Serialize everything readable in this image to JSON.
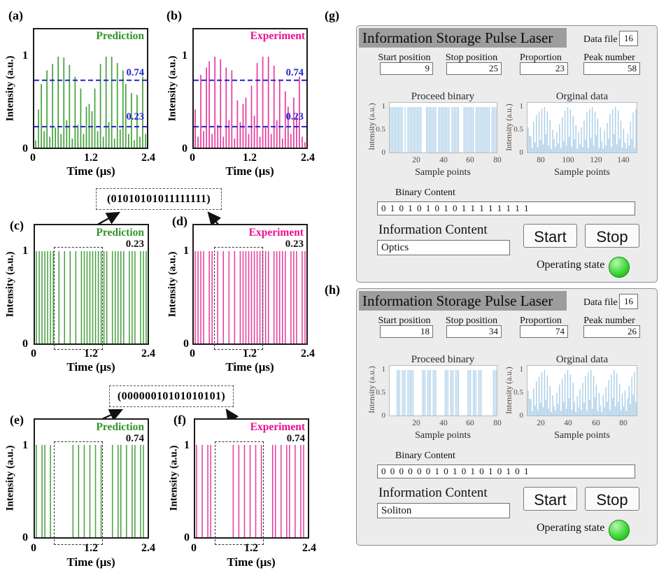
{
  "tags": {
    "a": "(a)",
    "b": "(b)",
    "c": "(c)",
    "d": "(d)",
    "e": "(e)",
    "f": "(f)",
    "g": "(g)",
    "h": "(h)"
  },
  "colors": {
    "prediction": "#44a03c",
    "experiment": "#e63a9e",
    "annotation_blue": "#2222cc",
    "gui_bar": "#a9cde8",
    "led_green": "#2ecc2e"
  },
  "annotations": {
    "cd": "(01010101011111111)",
    "ef": "(00000010101010101)"
  },
  "chart_data": [
    {
      "id": "a",
      "type": "stem",
      "legend": "Prediction",
      "xlabel": "Time (μs)",
      "ylabel": "Intensity (a.u.)",
      "xlim": [
        0,
        2.4
      ],
      "ylim": [
        0,
        1.15
      ],
      "xticks": [
        "0",
        "1.2",
        "2.4"
      ],
      "yticks": [
        "1",
        "0"
      ],
      "thresholds": [
        {
          "value": 0.74,
          "label": "0.74"
        },
        {
          "value": 0.23,
          "label": "0.23"
        }
      ],
      "values": [
        0.08,
        0.42,
        0.7,
        0.18,
        0.85,
        0.12,
        0.92,
        0.22,
        1.0,
        0.15,
        0.99,
        0.3,
        0.91,
        0.1,
        0.78,
        0.25,
        0.65,
        0.15,
        0.45,
        0.48,
        0.4,
        0.65,
        0.18,
        0.92,
        0.12,
        1.0,
        0.28,
        1.0,
        0.1,
        0.93,
        0.2,
        0.85,
        0.7,
        0.15,
        0.6,
        0.08,
        0.58,
        0.12,
        0.78,
        0.15
      ]
    },
    {
      "id": "b",
      "type": "stem",
      "legend": "Experiment",
      "xlabel": "Time (μs)",
      "ylabel": "Intensity (a.u.)",
      "xlim": [
        0,
        2.4
      ],
      "ylim": [
        0,
        1.15
      ],
      "xticks": [
        "0",
        "1.2",
        "2.4"
      ],
      "yticks": [
        "1",
        "0"
      ],
      "thresholds": [
        {
          "value": 0.74,
          "label": "0.74"
        },
        {
          "value": 0.23,
          "label": "0.23"
        }
      ],
      "values": [
        0.42,
        0.12,
        0.8,
        0.18,
        0.88,
        0.95,
        0.15,
        1.0,
        0.25,
        0.97,
        0.12,
        0.88,
        0.3,
        0.85,
        0.1,
        0.52,
        0.28,
        0.48,
        0.55,
        0.15,
        0.68,
        0.35,
        0.93,
        0.12,
        1.0,
        0.22,
        1.0,
        0.15,
        0.9,
        0.3,
        0.75,
        0.1,
        0.62,
        0.45,
        0.15,
        0.55,
        0.35,
        0.78,
        0.12,
        0.06
      ]
    },
    {
      "id": "c",
      "type": "stem",
      "legend": "Prediction",
      "threshold_label": "0.23",
      "xlabel": "Time (μs)",
      "ylabel": "Intensity (a.u.)",
      "xlim": [
        0,
        2.4
      ],
      "ylim": [
        0,
        1.15
      ],
      "xticks": [
        "0",
        "1.2",
        "2.4"
      ],
      "yticks": [
        "1",
        "0"
      ],
      "values": [
        1,
        1,
        1,
        1,
        1,
        1,
        1,
        0,
        1,
        0,
        1,
        0,
        1,
        0,
        1,
        0,
        1,
        1,
        1,
        1,
        1,
        1,
        1,
        1,
        1,
        1,
        0,
        1,
        1,
        1,
        1,
        1,
        0,
        1,
        1,
        1,
        0,
        1,
        1,
        1
      ]
    },
    {
      "id": "d",
      "type": "stem",
      "legend": "Experiment",
      "threshold_label": "0.23",
      "xlabel": "Time (μs)",
      "ylabel": "Intensity (a.u.)",
      "xlim": [
        0,
        2.4
      ],
      "ylim": [
        0,
        1.15
      ],
      "xticks": [
        "0",
        "1.2",
        "2.4"
      ],
      "yticks": [
        "1",
        "0"
      ],
      "values": [
        1,
        1,
        1,
        1,
        0,
        1,
        1,
        0,
        1,
        0,
        1,
        0,
        1,
        0,
        1,
        0,
        1,
        1,
        1,
        1,
        1,
        1,
        1,
        1,
        1,
        1,
        1,
        0,
        1,
        1,
        1,
        1,
        1,
        0,
        1,
        1,
        1,
        0,
        1,
        1
      ]
    },
    {
      "id": "e",
      "type": "stem",
      "legend": "Prediction",
      "threshold_label": "0.74",
      "xlabel": "Time (μs)",
      "ylabel": "Intensity (a.u.)",
      "xlim": [
        0,
        2.4
      ],
      "ylim": [
        0,
        1.15
      ],
      "xticks": [
        "0",
        "1.2",
        "2.4"
      ],
      "yticks": [
        "1",
        "0"
      ],
      "values": [
        1,
        0,
        1,
        1,
        0,
        1,
        0,
        0,
        0,
        0,
        0,
        0,
        0,
        1,
        0,
        1,
        0,
        1,
        0,
        1,
        0,
        1,
        0,
        1,
        0,
        0,
        0,
        1,
        0,
        1,
        1,
        0,
        1,
        0,
        1,
        1,
        0,
        1,
        1,
        0
      ]
    },
    {
      "id": "f",
      "type": "stem",
      "legend": "Experiment",
      "threshold_label": "0.74",
      "xlabel": "Time (μs)",
      "ylabel": "Intensity (a.u.)",
      "xlim": [
        0,
        2.4
      ],
      "ylim": [
        0,
        1.15
      ],
      "xticks": [
        "0",
        "1.2",
        "2.4"
      ],
      "yticks": [
        "1",
        "0"
      ],
      "values": [
        1,
        0,
        1,
        0,
        1,
        1,
        0,
        0,
        0,
        0,
        0,
        0,
        0,
        1,
        0,
        1,
        0,
        1,
        0,
        1,
        0,
        1,
        0,
        1,
        0,
        0,
        0,
        1,
        1,
        0,
        1,
        0,
        1,
        1,
        0,
        1,
        0,
        1,
        1,
        0
      ]
    },
    {
      "id": "g_binary",
      "type": "stem",
      "title": "Proceed binary",
      "xlabel": "Sample points",
      "ylabel": "Intensity (a.u.)",
      "xlim": [
        0,
        80
      ],
      "ylim": [
        0,
        1.1
      ],
      "xticks": [
        "20",
        "40",
        "60",
        "80"
      ],
      "yticks": [
        "1",
        "0.5",
        "0"
      ],
      "values": [
        1,
        1,
        1,
        1,
        1,
        1,
        1,
        1,
        1,
        1,
        0,
        1,
        0,
        1,
        1,
        1,
        1,
        1,
        1,
        1,
        1,
        1,
        1,
        1,
        0,
        0,
        0,
        1,
        1,
        1,
        1,
        1,
        1,
        1,
        1,
        0,
        1,
        1,
        1,
        1,
        1,
        1,
        1,
        1,
        1,
        0,
        1,
        1,
        1,
        1,
        1,
        1,
        0,
        0,
        0,
        1,
        1,
        1,
        1,
        1,
        1,
        1,
        1,
        0,
        1,
        1,
        1,
        1,
        1,
        1,
        1,
        1,
        1,
        1,
        1,
        0,
        1,
        1,
        1,
        1
      ]
    },
    {
      "id": "g_original",
      "type": "stem",
      "title": "Orginal data",
      "xlabel": "Sample points",
      "ylabel": "Intensity (a.u.)",
      "xlim": [
        70,
        150
      ],
      "ylim": [
        0,
        1.1
      ],
      "xticks": [
        "80",
        "100",
        "120",
        "140"
      ],
      "yticks": [
        "1",
        "0.5",
        "0"
      ],
      "values": [
        0.55,
        0.37,
        0.36,
        0.1,
        0.68,
        0.22,
        0.82,
        0.12,
        0.9,
        0.28,
        0.97,
        0.18,
        1.0,
        0.4,
        0.9,
        0.15,
        0.72,
        0.08,
        0.5,
        0.3,
        0.12,
        0.45,
        0.2,
        0.62,
        0.1,
        0.78,
        0.25,
        0.92,
        0.15,
        1.0,
        0.35,
        0.95,
        0.12,
        0.8,
        0.3,
        0.6,
        0.08,
        0.45,
        0.18,
        0.55,
        0.12,
        0.7,
        0.28,
        0.88,
        0.1,
        0.96,
        0.32,
        1.0,
        0.15,
        0.9,
        0.38,
        0.75,
        0.1,
        0.55,
        0.25,
        0.08,
        0.48,
        0.15,
        0.65,
        0.3,
        0.85,
        0.12,
        0.95,
        0.4,
        1.0,
        0.18,
        0.92,
        0.3,
        0.7,
        0.1,
        0.52,
        0.22,
        0.08,
        0.42,
        0.15,
        0.68,
        0.3,
        0.88,
        0.1,
        0.96
      ]
    },
    {
      "id": "h_binary",
      "type": "stem",
      "title": "Proceed binary",
      "xlabel": "Sample points",
      "ylabel": "Intensity (a.u.)",
      "xlim": [
        0,
        80
      ],
      "ylim": [
        0,
        1.1
      ],
      "xticks": [
        "20",
        "40",
        "60",
        "80"
      ],
      "yticks": [
        "1",
        "0.5",
        "0"
      ],
      "values": [
        0,
        0,
        0,
        0,
        0,
        1,
        1,
        1,
        0,
        1,
        1,
        1,
        0,
        1,
        1,
        1,
        1,
        1,
        0,
        0,
        0,
        0,
        0,
        0,
        1,
        1,
        1,
        0,
        1,
        1,
        1,
        0,
        1,
        1,
        1,
        0,
        0,
        0,
        0,
        0,
        0,
        1,
        1,
        1,
        0,
        1,
        1,
        1,
        0,
        1,
        1,
        1,
        0,
        0,
        0,
        0,
        0,
        0,
        1,
        1,
        1,
        0,
        1,
        1,
        1,
        0,
        1,
        1,
        1,
        0,
        0,
        0,
        0,
        0,
        0,
        0,
        0,
        1,
        1,
        1
      ]
    },
    {
      "id": "h_original",
      "type": "stem",
      "title": "Orginal data",
      "xlabel": "Sample points",
      "ylabel": "Intensity (a.u.)",
      "xlim": [
        0,
        80
      ],
      "ylim": [
        0,
        1.1
      ],
      "xticks": [
        "20",
        "40",
        "60",
        "80"
      ],
      "yticks": [
        "1",
        "0.5",
        "0"
      ],
      "values": [
        0.55,
        0.37,
        0.36,
        0.1,
        0.6,
        0.22,
        0.75,
        0.12,
        0.85,
        0.28,
        0.95,
        0.18,
        1.0,
        0.35,
        0.88,
        0.15,
        0.65,
        0.08,
        0.45,
        0.2,
        0.12,
        0.5,
        0.25,
        0.68,
        0.1,
        0.8,
        0.3,
        0.92,
        0.15,
        1.0,
        0.38,
        0.9,
        0.12,
        0.72,
        0.3,
        0.08,
        0.42,
        0.18,
        0.58,
        0.12,
        0.72,
        0.28,
        0.86,
        0.1,
        0.95,
        0.35,
        1.0,
        0.15,
        0.88,
        0.4,
        0.68,
        0.1,
        0.5,
        0.22,
        0.08,
        0.45,
        0.18,
        0.62,
        0.3,
        0.78,
        0.12,
        0.9,
        0.38,
        1.0,
        0.2,
        0.93,
        0.3,
        0.7,
        0.12,
        0.48,
        0.2,
        0.55,
        0.1,
        0.38,
        0.65,
        0.25,
        0.85,
        0.45,
        0.96,
        0.3
      ]
    }
  ],
  "gui_g": {
    "title": "Information Storage Pulse Laser",
    "data_file_label": "Data file",
    "data_file_value": "16",
    "params": [
      {
        "label": "Start position",
        "value": "9"
      },
      {
        "label": "Stop position",
        "value": "25"
      },
      {
        "label": "Proportion",
        "value": "23"
      },
      {
        "label": "Peak number",
        "value": "58"
      }
    ],
    "binary_label": "Binary Content",
    "binary_value": "0 1 0 1 0 1 0 1 0 1 1 1 1 1 1 1 1",
    "info_label": "Information Content",
    "info_value": "Optics",
    "start_label": "Start",
    "stop_label": "Stop",
    "operating_label": "Operating state"
  },
  "gui_h": {
    "title": "Information Storage Pulse Laser",
    "data_file_label": "Data file",
    "data_file_value": "16",
    "params": [
      {
        "label": "Start position",
        "value": "18"
      },
      {
        "label": "Stop position",
        "value": "34"
      },
      {
        "label": "Proportion",
        "value": "74"
      },
      {
        "label": "Peak number",
        "value": "26"
      }
    ],
    "binary_label": "Binary Content",
    "binary_value": "0 0 0 0 0 0 1 0 1 0 1 0 1 0 1 0 1",
    "info_label": "Information Content",
    "info_value": "Soliton",
    "start_label": "Start",
    "stop_label": "Stop",
    "operating_label": "Operating state"
  }
}
